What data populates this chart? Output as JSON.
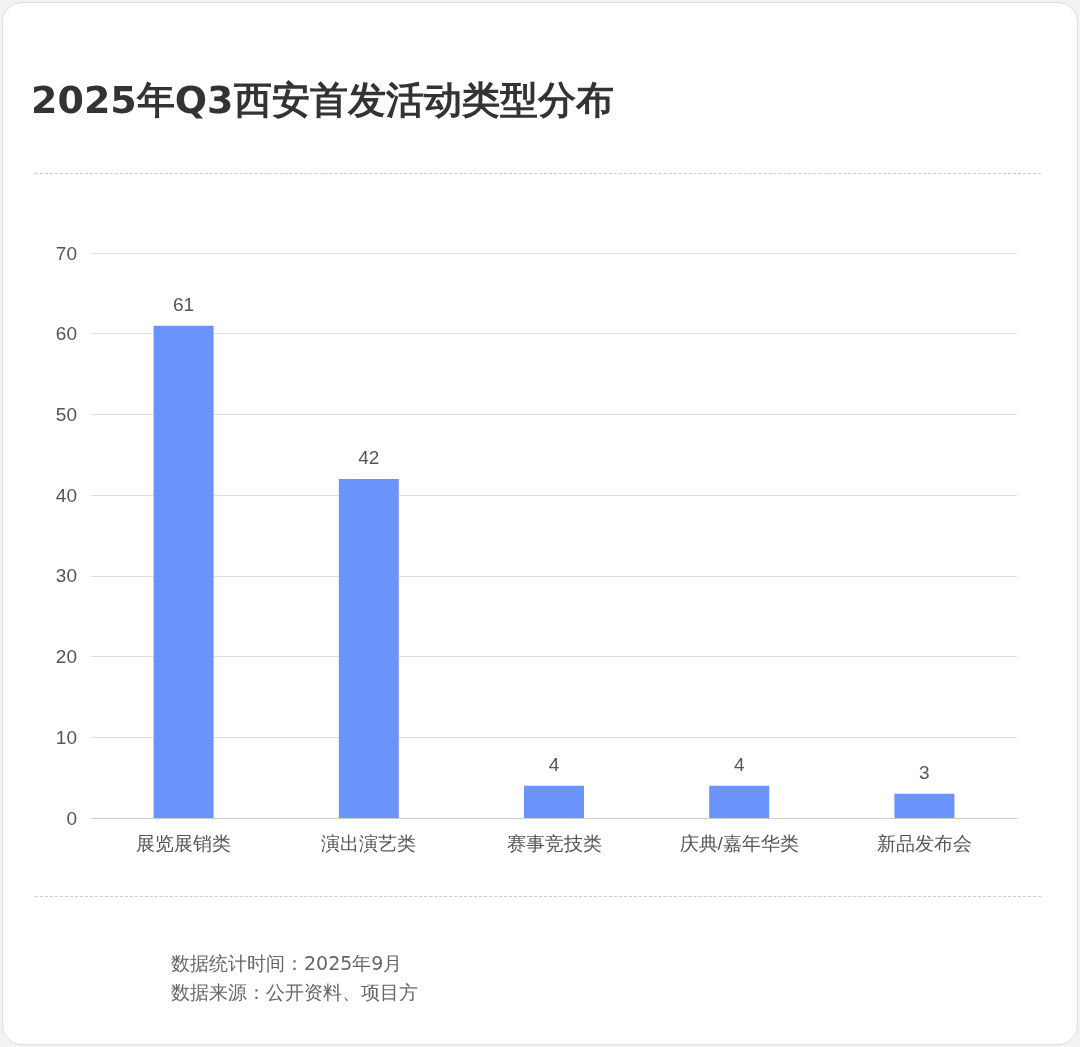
{
  "chart_data": {
    "type": "bar",
    "title": "2025年Q3西安首发活动类型分布",
    "categories": [
      "展览展销类",
      "演出演艺类",
      "赛事竞技类",
      "庆典/嘉年华类",
      "新品发布会"
    ],
    "values": [
      61,
      42,
      4,
      4,
      3
    ],
    "color": "#6b93fc",
    "ylim": [
      0,
      70
    ],
    "yticks": [
      0,
      10,
      20,
      30,
      40,
      50,
      60,
      70
    ],
    "grid": "y",
    "data_labels": true,
    "annotations": [
      "数据统计时间：2025年9月",
      "数据来源：公开资料、项目方"
    ]
  }
}
